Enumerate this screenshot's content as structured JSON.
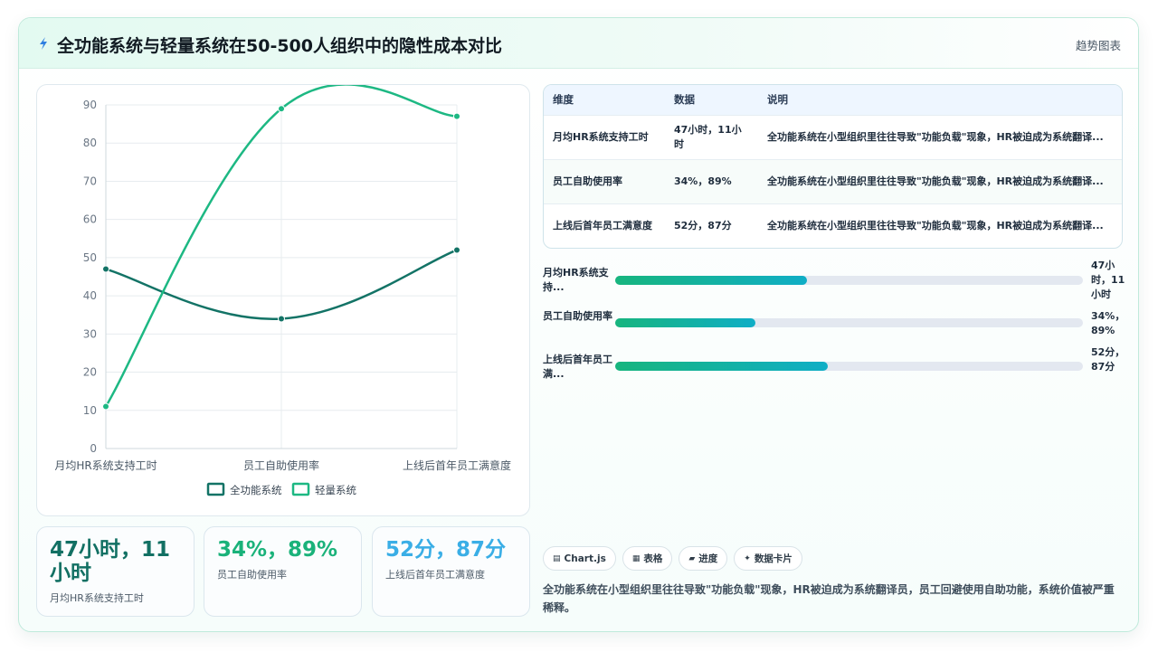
{
  "header": {
    "title": "全功能系统与轻量系统在50-500人组织中的隐性成本对比",
    "link": "趋势图表"
  },
  "chart_data": {
    "type": "line",
    "categories": [
      "月均HR系统支持工时",
      "员工自助使用率",
      "上线后首年员工满意度"
    ],
    "series": [
      {
        "name": "全功能系统",
        "values": [
          47,
          34,
          52
        ],
        "color": "#137366"
      },
      {
        "name": "轻量系统",
        "values": [
          11,
          89,
          87
        ],
        "color": "#1db883"
      }
    ],
    "ylim": [
      0,
      90
    ],
    "yticks": [
      "0",
      "10",
      "20",
      "30",
      "40",
      "50",
      "60",
      "70",
      "80",
      "90"
    ],
    "grid": true,
    "legend": "bottom"
  },
  "stats": [
    {
      "value": "47小时，11小时",
      "label": "月均HR系统支持工时",
      "color": "#127063"
    },
    {
      "value": "34%，89%",
      "label": "员工自助使用率",
      "color": "#1ab27a"
    },
    {
      "value": "52分，87分",
      "label": "上线后首年员工满意度",
      "color": "#3aaee6"
    }
  ],
  "table": {
    "headers": [
      "维度",
      "数据",
      "说明"
    ],
    "rows": [
      {
        "dimension": "月均HR系统支持工时",
        "data": "47小时，11小时",
        "note": "全功能系统在小型组织里往往导致\"功能负载\"现象，HR被迫成为系统翻译..."
      },
      {
        "dimension": "员工自助使用率",
        "data": "34%，89%",
        "note": "全功能系统在小型组织里往往导致\"功能负载\"现象，HR被迫成为系统翻译..."
      },
      {
        "dimension": "上线后首年员工满意度",
        "data": "52分，87分",
        "note": "全功能系统在小型组织里往往导致\"功能负载\"现象，HR被迫成为系统翻译..."
      }
    ]
  },
  "progress": [
    {
      "label": "月均HR系统支持...",
      "value": "47小时，11小时",
      "fraction": 0.41
    },
    {
      "label": "员工自助使用率",
      "value": "34%，89%",
      "fraction": 0.3
    },
    {
      "label": "上线后首年员工满...",
      "value": "52分，87分",
      "fraction": 0.455
    }
  ],
  "tags": [
    {
      "icon": "chart-icon",
      "glyph": "▤",
      "label": "Chart.js"
    },
    {
      "icon": "table-icon",
      "glyph": "▦",
      "label": "表格"
    },
    {
      "icon": "progress-icon",
      "glyph": "▰",
      "label": "进度"
    },
    {
      "icon": "sparkle-icon",
      "glyph": "✦",
      "label": "数据卡片"
    }
  ],
  "footer_note": "全功能系统在小型组织里往往导致\"功能负载\"现象，HR被迫成为系统翻译员，员工回避使用自助功能，系统价值被严重稀释。"
}
